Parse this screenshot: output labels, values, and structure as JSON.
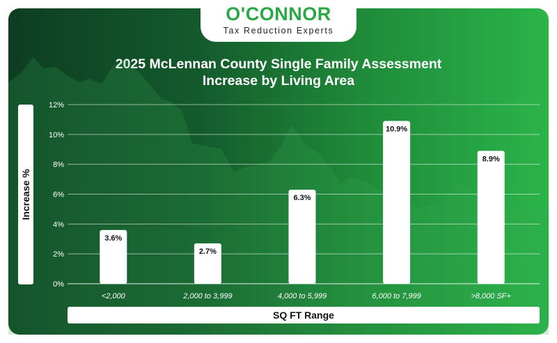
{
  "brand": {
    "name": "O'CONNOR",
    "tagline": "Tax Reduction Experts"
  },
  "chart_data": {
    "type": "bar",
    "title": "2025 McLennan County Single Family Assessment Increase by Living Area",
    "title_lines": [
      "2025 McLennan County Single Family Assessment",
      "Increase by Living Area"
    ],
    "xlabel": "SQ FT Range",
    "ylabel": "Increase %",
    "categories": [
      "<2,000",
      "2,000 to 3,999",
      "4,000 to 5,999",
      "6,000 to 7,999",
      ">8,000 SF+"
    ],
    "values": [
      3.6,
      2.7,
      6.3,
      10.9,
      8.9
    ],
    "data_labels": [
      "3.6%",
      "2.7%",
      "6.3%",
      "10.9%",
      "8.9%"
    ],
    "yticks": [
      "0%",
      "2%",
      "4%",
      "6%",
      "8%",
      "10%",
      "12%"
    ],
    "ylim": [
      0,
      12
    ],
    "grid": true,
    "colors": {
      "bar": "#ffffff",
      "grid": "#ffffff",
      "background_dark": "#0d3d22",
      "background_light": "#2bb44a",
      "brand_green": "#2aa845"
    }
  }
}
